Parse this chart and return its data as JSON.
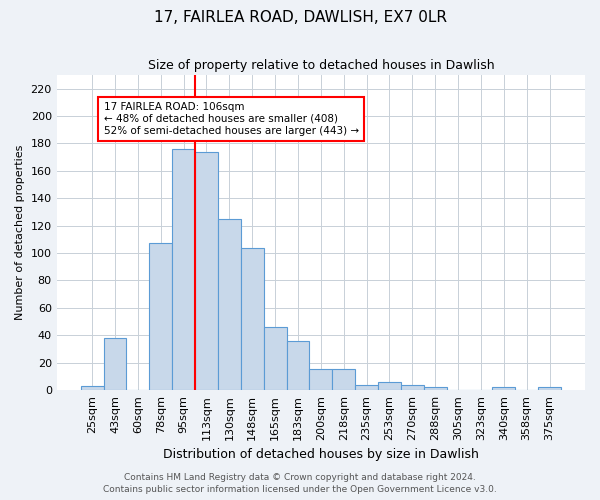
{
  "title": "17, FAIRLEA ROAD, DAWLISH, EX7 0LR",
  "subtitle": "Size of property relative to detached houses in Dawlish",
  "xlabel": "Distribution of detached houses by size in Dawlish",
  "ylabel": "Number of detached properties",
  "categories": [
    "25sqm",
    "43sqm",
    "60sqm",
    "78sqm",
    "95sqm",
    "113sqm",
    "130sqm",
    "148sqm",
    "165sqm",
    "183sqm",
    "200sqm",
    "218sqm",
    "235sqm",
    "253sqm",
    "270sqm",
    "288sqm",
    "305sqm",
    "323sqm",
    "340sqm",
    "358sqm",
    "375sqm"
  ],
  "bar_values": [
    3,
    38,
    0,
    107,
    176,
    174,
    125,
    104,
    46,
    36,
    15,
    15,
    4,
    6,
    4,
    2,
    0,
    0,
    2,
    0,
    2
  ],
  "bar_color": "#c8d8ea",
  "bar_edge_color": "#5b9bd5",
  "vline_color": "red",
  "annotation_text": "17 FAIRLEA ROAD: 106sqm\n← 48% of detached houses are smaller (408)\n52% of semi-detached houses are larger (443) →",
  "annotation_box_color": "white",
  "annotation_box_edge_color": "red",
  "ylim": [
    0,
    230
  ],
  "yticks": [
    0,
    20,
    40,
    60,
    80,
    100,
    120,
    140,
    160,
    180,
    200,
    220
  ],
  "footnote1": "Contains HM Land Registry data © Crown copyright and database right 2024.",
  "footnote2": "Contains public sector information licensed under the Open Government Licence v3.0.",
  "background_color": "#eef2f7",
  "plot_background_color": "#ffffff",
  "grid_color": "#c8d0d8"
}
